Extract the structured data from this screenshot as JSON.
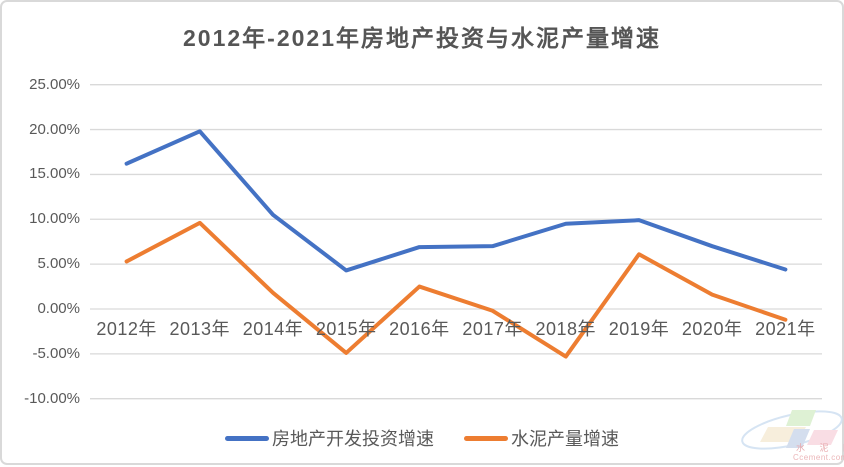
{
  "chart": {
    "title": "2012年-2021年房地产投资与水泥产量增速"
  },
  "chart_data": {
    "type": "line",
    "title": "2012年-2021年房地产投资与水泥产量增速",
    "categories": [
      "2012年",
      "2013年",
      "2014年",
      "2015年",
      "2016年",
      "2017年",
      "2018年",
      "2019年",
      "2020年",
      "2021年"
    ],
    "series": [
      {
        "name": "房地产开发投资增速",
        "color": "#4472C4",
        "values": [
          16.2,
          19.8,
          10.5,
          4.3,
          6.9,
          7.0,
          9.5,
          9.9,
          7.0,
          4.4
        ]
      },
      {
        "name": "水泥产量增速",
        "color": "#ED7D31",
        "values": [
          5.3,
          9.6,
          1.8,
          -4.9,
          2.5,
          -0.2,
          -5.3,
          6.1,
          1.6,
          -1.2
        ]
      }
    ],
    "xlabel": "",
    "ylabel": "",
    "ylim": [
      -10,
      25
    ],
    "ytick_step": 5,
    "ytick_labels": [
      "25.00%",
      "20.00%",
      "15.00%",
      "10.00%",
      "5.00%",
      "0.00%",
      "-5.00%",
      "-10.00%"
    ],
    "grid": true,
    "legend_position": "bottom",
    "x_axis_labels_position": "next-to-zero-line"
  },
  "colors": {
    "grid": "#D9D9D9",
    "axis_text": "#595959",
    "title_text": "#555555",
    "card_border": "#D9D9D9",
    "series_blue": "#4472C4",
    "series_orange": "#ED7D31"
  },
  "watermark": {
    "name": "水 泥 网",
    "site": "Ccement.com"
  }
}
